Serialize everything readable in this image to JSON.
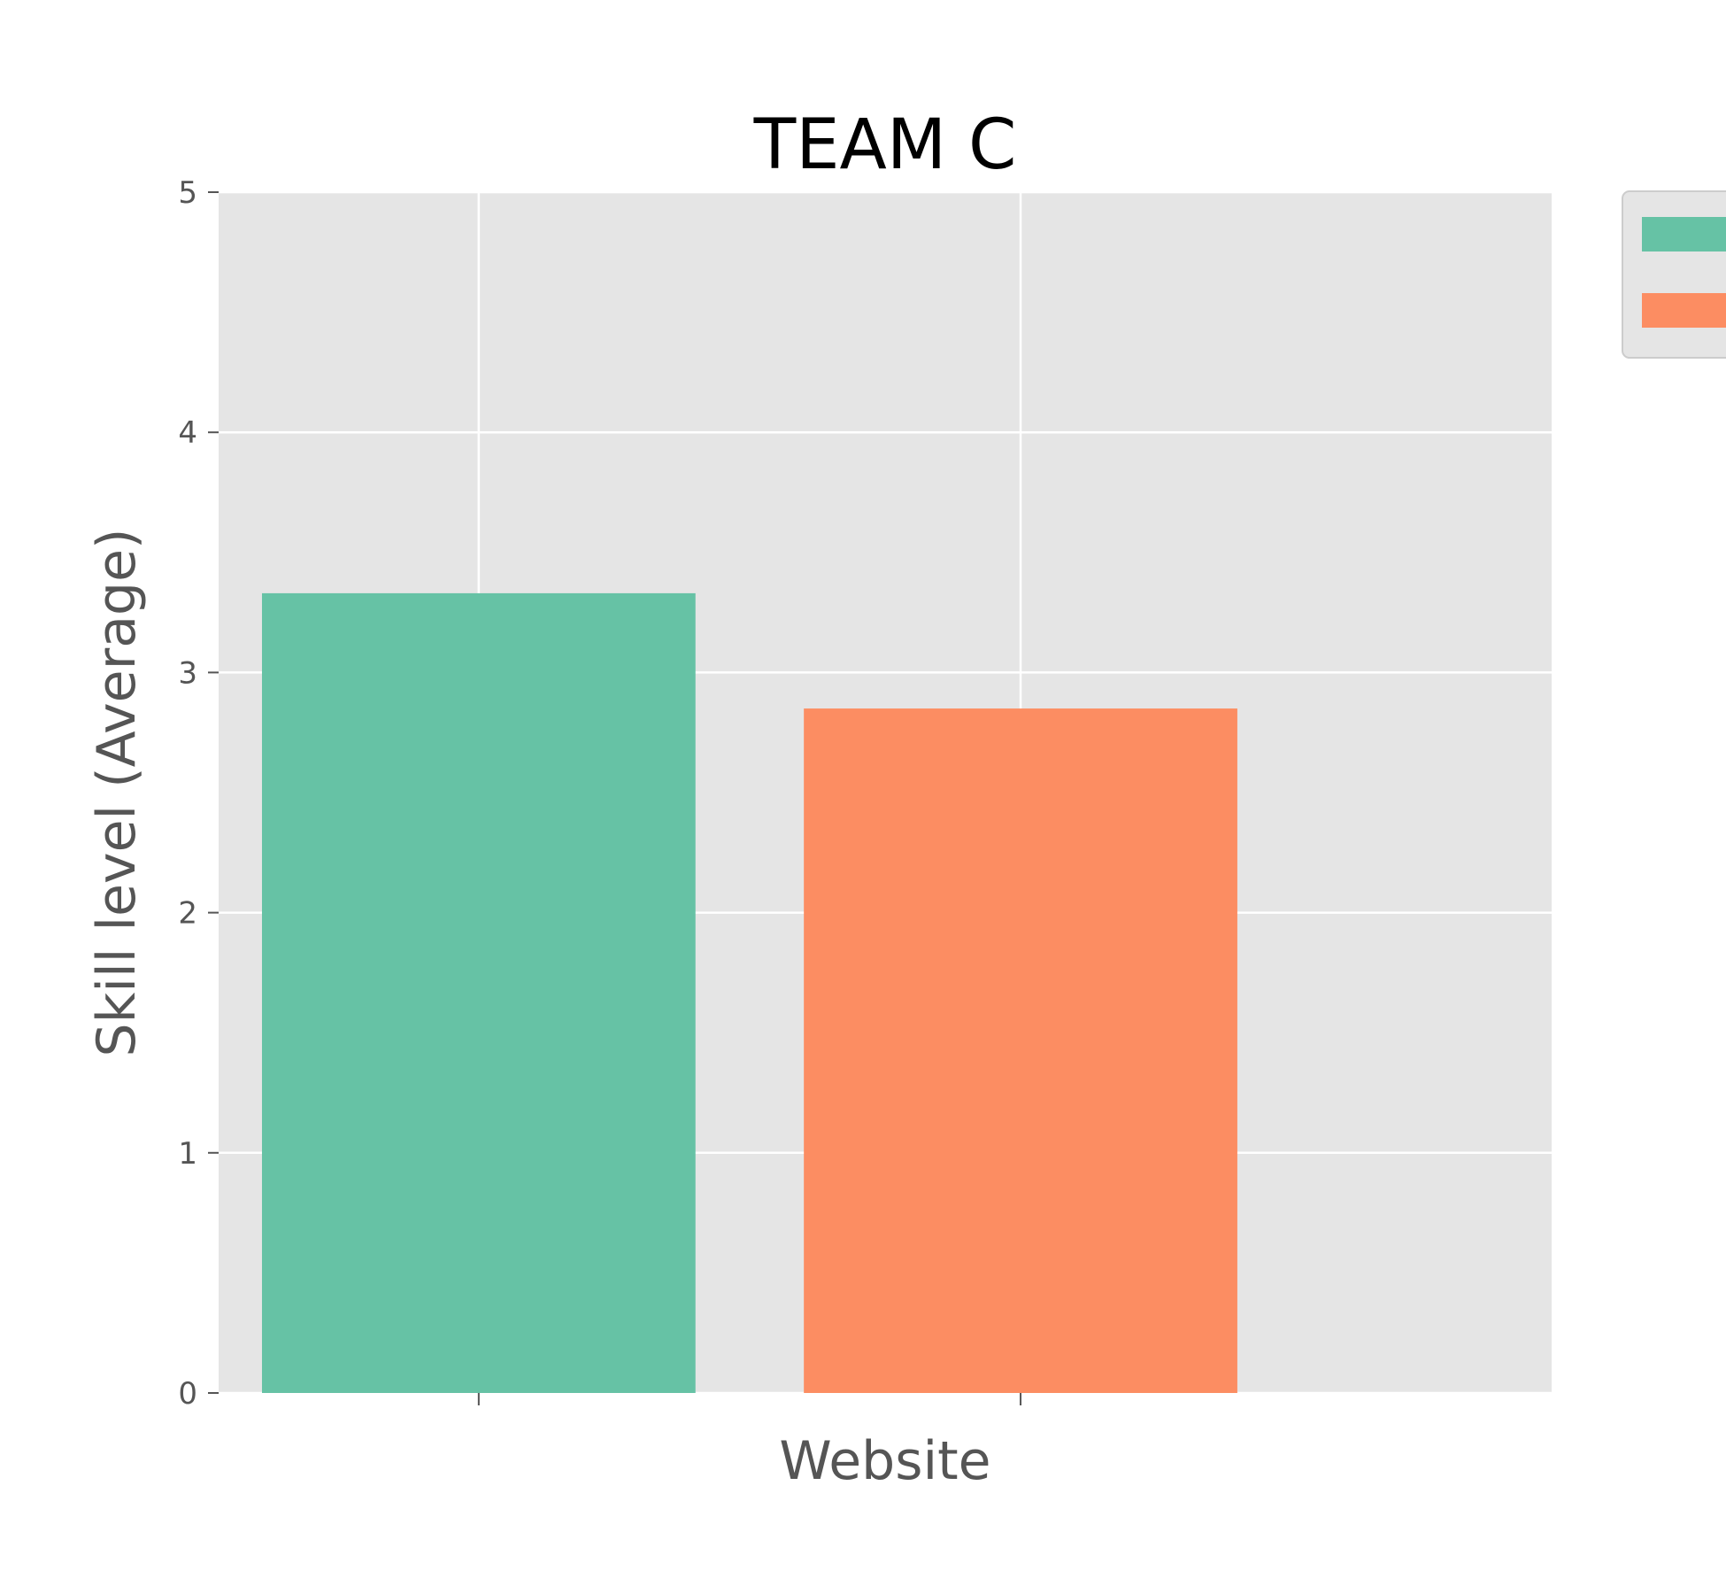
{
  "chart_data": {
    "type": "bar",
    "title": "TEAM C",
    "xlabel": "Website",
    "ylabel": "Skill level (Average)",
    "ylim": [
      0,
      5
    ],
    "yticks": [
      "0",
      "1",
      "2",
      "3",
      "4",
      "5"
    ],
    "grid": true,
    "legend_placement": "top-right, partially outside plot",
    "background_color": "#E5E5E5",
    "series": [
      {
        "value": 3.33,
        "color": "#66C2A5"
      },
      {
        "value": 2.85,
        "color": "#FC8D62"
      }
    ]
  }
}
